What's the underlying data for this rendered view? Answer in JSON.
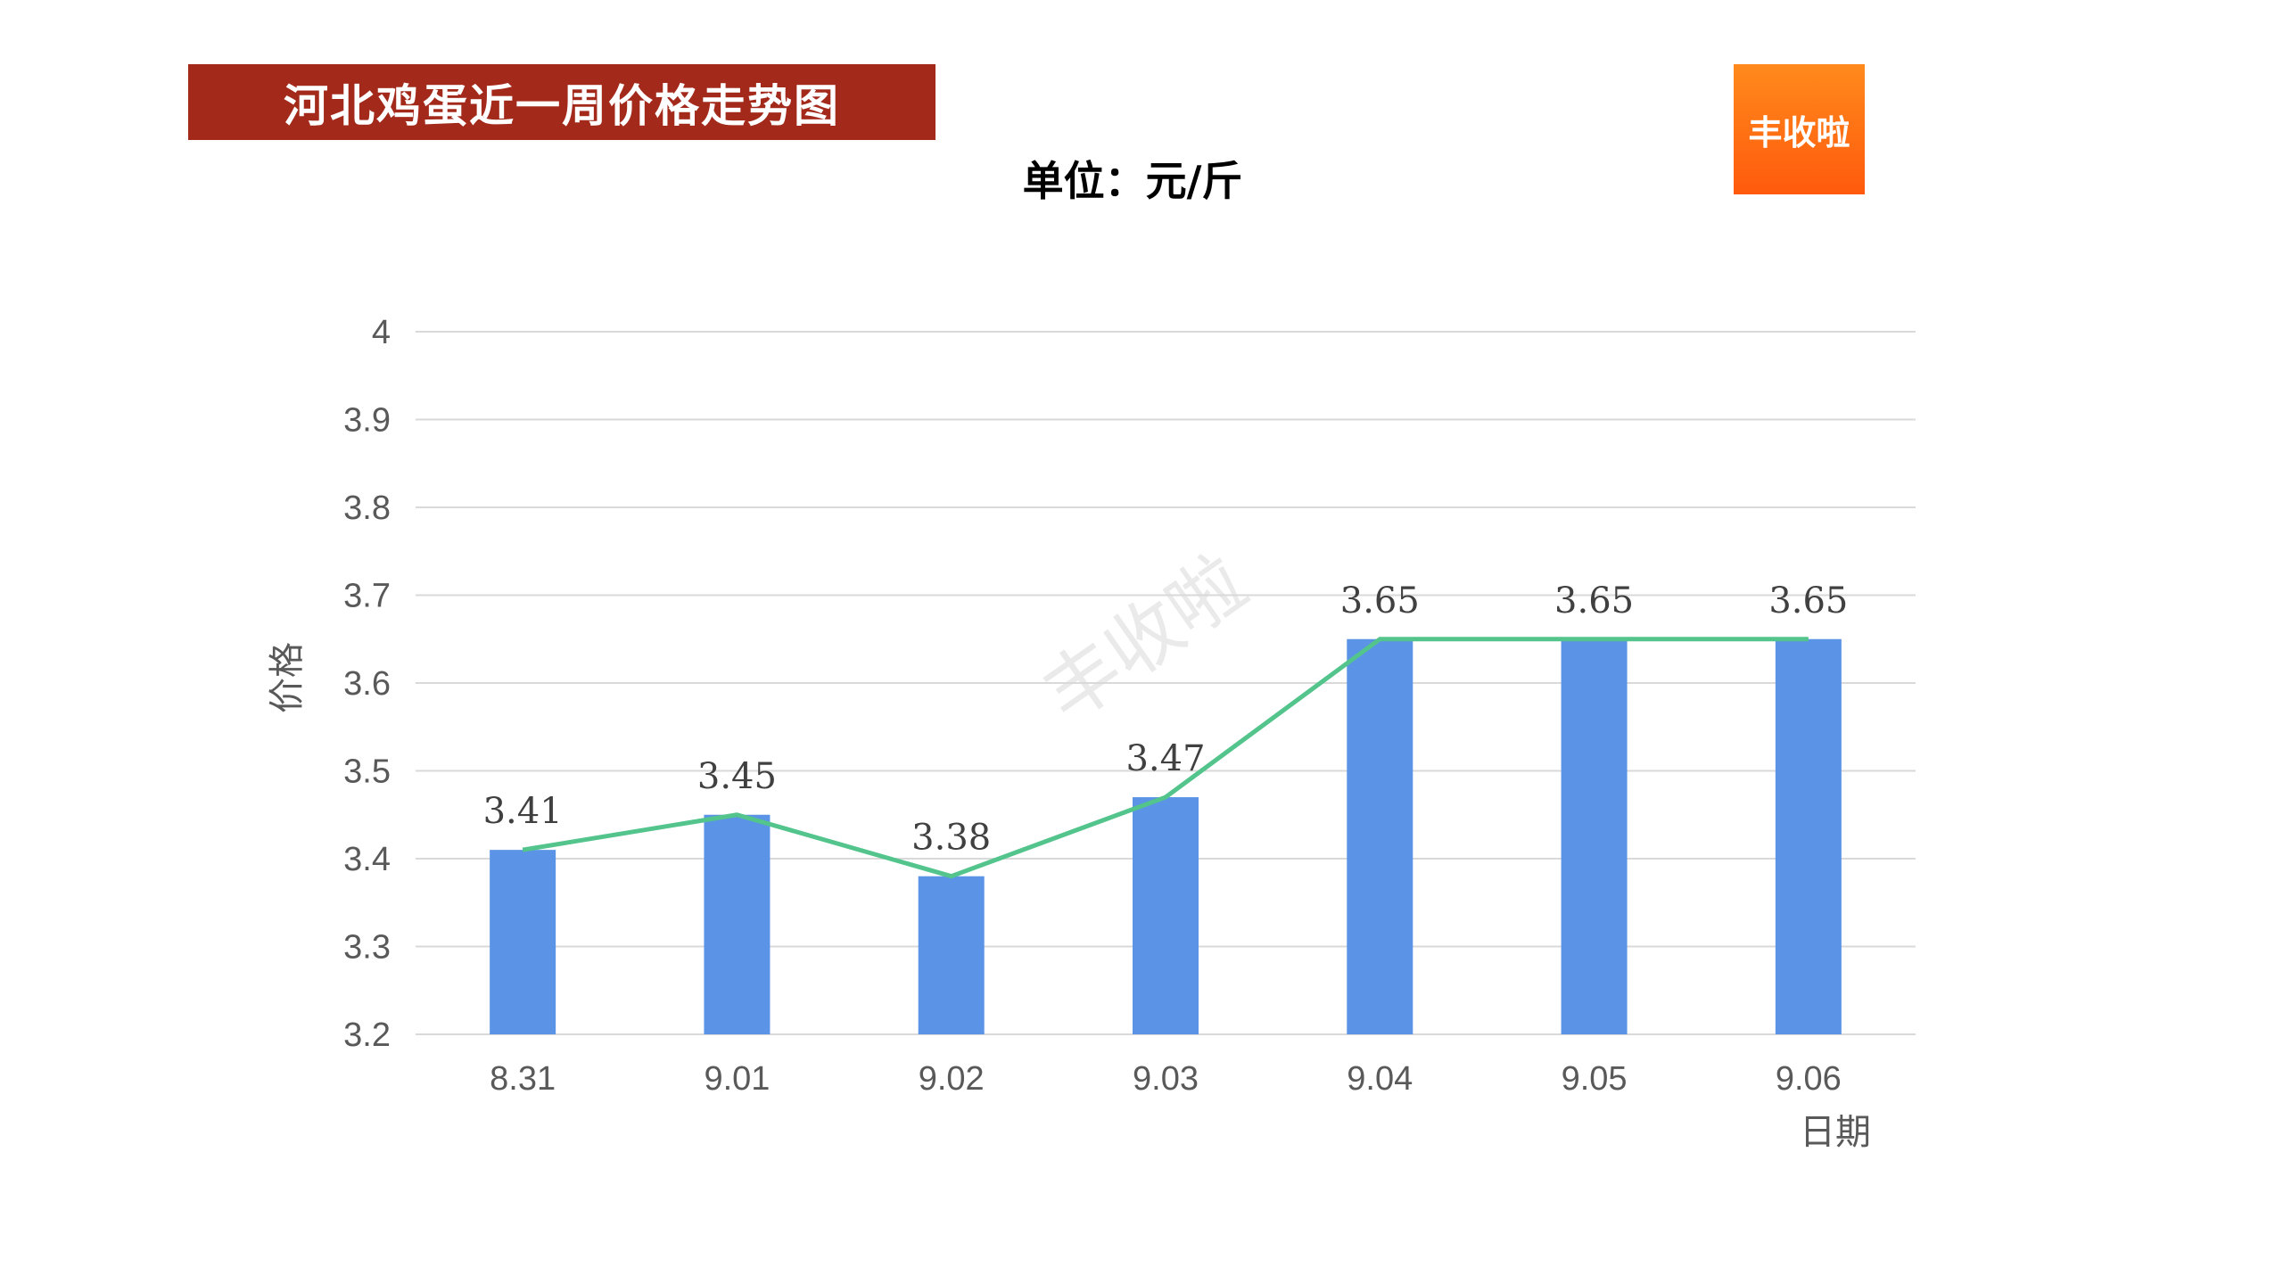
{
  "header": {
    "title": "河北鸡蛋近一周价格走势图",
    "unit": "单位：元/斤",
    "logo_text": "丰收啦"
  },
  "watermark": "丰收啦",
  "colors": {
    "banner": "#a3291b",
    "logo_top": "#ff8a1c",
    "logo_bottom": "#ff5a0c",
    "bar": "#5b93e6",
    "line": "#52c48c",
    "grid": "#d9d9d9"
  },
  "chart_data": {
    "type": "bar",
    "categories": [
      "8.31",
      "9.01",
      "9.02",
      "9.03",
      "9.04",
      "9.05",
      "9.06"
    ],
    "series": [
      {
        "type": "bar",
        "values": [
          3.41,
          3.45,
          3.38,
          3.47,
          3.65,
          3.65,
          3.65
        ]
      },
      {
        "type": "line",
        "values": [
          3.41,
          3.45,
          3.38,
          3.47,
          3.65,
          3.65,
          3.65
        ]
      }
    ],
    "data_labels": [
      "3.41",
      "3.45",
      "3.38",
      "3.47",
      "3.65",
      "3.65",
      "3.65"
    ],
    "xlabel": "日期",
    "ylabel": "价格",
    "ylim": [
      3.2,
      4
    ],
    "yticks": [
      "3.2",
      "3.3",
      "3.4",
      "3.5",
      "3.6",
      "3.7",
      "3.8",
      "3.9",
      "4"
    ],
    "grid": true,
    "legend": "none"
  }
}
